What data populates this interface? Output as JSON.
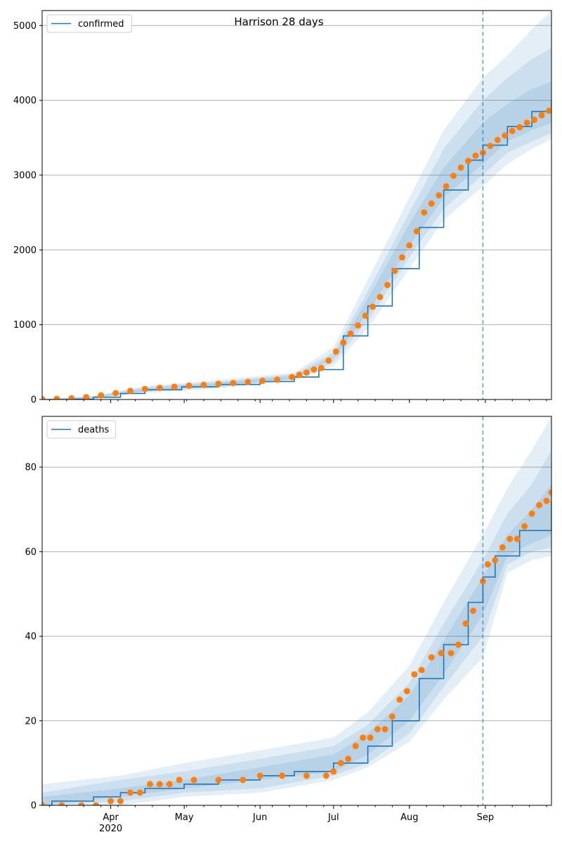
{
  "figure_title": "Harrison 28 days",
  "colors": {
    "model": "#1f77b4",
    "observed": "#ff7f0e",
    "band": "#1f77b4",
    "grid": "#b0b0b0"
  },
  "x_axis": {
    "tick_labels": [
      "Apr",
      "May",
      "Jun",
      "Jul",
      "Aug",
      "Sep"
    ],
    "year_label": "2020"
  },
  "chart_data": [
    {
      "type": "line",
      "name": "confirmed",
      "legend": "confirmed",
      "legend_position": "top-left",
      "grid": true,
      "x_range": [
        "2020-03-04",
        "2020-09-28"
      ],
      "forecast_start": "2020-08-31",
      "ylim": [
        0,
        5200
      ],
      "yticks": [
        0,
        1000,
        2000,
        3000,
        4000,
        5000
      ],
      "model": {
        "x": [
          "2020-03-04",
          "2020-03-15",
          "2020-03-25",
          "2020-04-05",
          "2020-04-15",
          "2020-04-30",
          "2020-05-15",
          "2020-06-01",
          "2020-06-15",
          "2020-06-25",
          "2020-07-05",
          "2020-07-15",
          "2020-07-25",
          "2020-08-05",
          "2020-08-15",
          "2020-08-25",
          "2020-08-31",
          "2020-09-10",
          "2020-09-20",
          "2020-09-28"
        ],
        "y": [
          0,
          5,
          30,
          80,
          130,
          170,
          200,
          240,
          300,
          400,
          850,
          1250,
          1750,
          2300,
          2800,
          3200,
          3400,
          3650,
          3850,
          4000
        ]
      },
      "bands": [
        {
          "x": [
            "2020-03-04",
            "2020-03-25",
            "2020-04-15",
            "2020-05-15",
            "2020-06-15",
            "2020-07-01",
            "2020-07-15",
            "2020-08-01",
            "2020-08-15",
            "2020-08-31",
            "2020-09-10",
            "2020-09-20",
            "2020-09-28"
          ],
          "low": [
            0,
            10,
            90,
            150,
            250,
            450,
            950,
            1750,
            2400,
            2850,
            3150,
            3350,
            3480
          ],
          "high": [
            0,
            50,
            180,
            260,
            360,
            700,
            1600,
            2700,
            3600,
            4300,
            4600,
            4950,
            5200
          ]
        },
        {
          "x": [
            "2020-03-04",
            "2020-03-25",
            "2020-04-15",
            "2020-05-15",
            "2020-06-15",
            "2020-07-01",
            "2020-07-15",
            "2020-08-01",
            "2020-08-15",
            "2020-08-31",
            "2020-09-10",
            "2020-09-20",
            "2020-09-28"
          ],
          "low": [
            0,
            15,
            100,
            165,
            265,
            500,
            1050,
            1900,
            2550,
            3000,
            3300,
            3450,
            3560
          ],
          "high": [
            0,
            45,
            165,
            240,
            340,
            630,
            1450,
            2500,
            3350,
            4000,
            4300,
            4550,
            4700
          ]
        },
        {
          "x": [
            "2020-03-04",
            "2020-03-25",
            "2020-04-15",
            "2020-05-15",
            "2020-06-15",
            "2020-07-01",
            "2020-07-15",
            "2020-08-01",
            "2020-08-15",
            "2020-08-31",
            "2020-09-10",
            "2020-09-20",
            "2020-09-28"
          ],
          "low": [
            0,
            20,
            110,
            178,
            280,
            560,
            1150,
            2050,
            2700,
            3150,
            3450,
            3600,
            3700
          ],
          "high": [
            0,
            38,
            150,
            222,
            320,
            580,
            1350,
            2350,
            3100,
            3700,
            3950,
            4150,
            4250
          ]
        }
      ],
      "observed": {
        "x": [
          "2020-03-04",
          "2020-03-10",
          "2020-03-16",
          "2020-03-22",
          "2020-03-28",
          "2020-04-03",
          "2020-04-09",
          "2020-04-15",
          "2020-04-21",
          "2020-04-27",
          "2020-05-03",
          "2020-05-09",
          "2020-05-15",
          "2020-05-21",
          "2020-05-27",
          "2020-06-02",
          "2020-06-08",
          "2020-06-14",
          "2020-06-17",
          "2020-06-20",
          "2020-06-23",
          "2020-06-26",
          "2020-06-29",
          "2020-07-02",
          "2020-07-05",
          "2020-07-08",
          "2020-07-11",
          "2020-07-14",
          "2020-07-17",
          "2020-07-20",
          "2020-07-23",
          "2020-07-26",
          "2020-07-29",
          "2020-08-01",
          "2020-08-04",
          "2020-08-07",
          "2020-08-10",
          "2020-08-13",
          "2020-08-16",
          "2020-08-19",
          "2020-08-22",
          "2020-08-25",
          "2020-08-28",
          "2020-08-31",
          "2020-09-03",
          "2020-09-06",
          "2020-09-09",
          "2020-09-12",
          "2020-09-15",
          "2020-09-18",
          "2020-09-21",
          "2020-09-24",
          "2020-09-27"
        ],
        "y": [
          5,
          8,
          15,
          30,
          55,
          85,
          115,
          140,
          155,
          170,
          185,
          195,
          210,
          220,
          235,
          250,
          265,
          300,
          330,
          360,
          400,
          420,
          520,
          640,
          760,
          880,
          990,
          1120,
          1240,
          1370,
          1530,
          1720,
          1900,
          2060,
          2250,
          2500,
          2620,
          2730,
          2850,
          2990,
          3100,
          3190,
          3260,
          3300,
          3390,
          3470,
          3530,
          3590,
          3640,
          3700,
          3740,
          3800,
          3860
        ]
      }
    },
    {
      "type": "line",
      "name": "deaths",
      "legend": "deaths",
      "legend_position": "top-left",
      "grid": true,
      "x_range": [
        "2020-03-04",
        "2020-09-28"
      ],
      "forecast_start": "2020-08-31",
      "ylim": [
        0,
        92
      ],
      "yticks": [
        0,
        20,
        40,
        60,
        80
      ],
      "model": {
        "x": [
          "2020-03-04",
          "2020-03-08",
          "2020-03-25",
          "2020-04-05",
          "2020-04-15",
          "2020-05-01",
          "2020-05-15",
          "2020-06-01",
          "2020-06-15",
          "2020-07-01",
          "2020-07-15",
          "2020-07-25",
          "2020-08-05",
          "2020-08-15",
          "2020-08-25",
          "2020-08-31",
          "2020-09-05",
          "2020-09-15",
          "2020-09-28"
        ],
        "y": [
          0,
          1,
          2,
          3,
          4,
          5,
          6,
          7,
          8,
          10,
          14,
          20,
          30,
          38,
          48,
          54,
          59,
          65,
          72
        ]
      },
      "bands": [
        {
          "x": [
            "2020-03-04",
            "2020-04-05",
            "2020-05-01",
            "2020-06-01",
            "2020-07-01",
            "2020-07-15",
            "2020-08-01",
            "2020-08-15",
            "2020-08-31",
            "2020-09-10",
            "2020-09-20",
            "2020-09-28"
          ],
          "low": [
            0,
            0,
            2,
            3,
            6,
            9,
            15,
            25,
            35,
            55,
            58,
            59
          ],
          "high": [
            5,
            7,
            10,
            13,
            16,
            22,
            33,
            48,
            64,
            75,
            84,
            92
          ]
        },
        {
          "x": [
            "2020-03-04",
            "2020-04-05",
            "2020-05-01",
            "2020-06-01",
            "2020-07-01",
            "2020-07-15",
            "2020-08-01",
            "2020-08-15",
            "2020-08-31",
            "2020-09-10",
            "2020-09-20",
            "2020-09-28"
          ],
          "low": [
            0,
            1,
            3,
            4,
            7,
            10,
            17,
            28,
            40,
            57,
            60,
            61
          ],
          "high": [
            3,
            6,
            8,
            11,
            14,
            19,
            29,
            43,
            58,
            69,
            76,
            84
          ]
        },
        {
          "x": [
            "2020-03-04",
            "2020-04-05",
            "2020-05-01",
            "2020-06-01",
            "2020-07-01",
            "2020-07-15",
            "2020-08-01",
            "2020-08-15",
            "2020-08-31",
            "2020-09-10",
            "2020-09-20",
            "2020-09-28"
          ],
          "low": [
            0,
            2,
            4,
            6,
            8,
            12,
            20,
            31,
            45,
            59,
            62,
            64
          ],
          "high": [
            2,
            4,
            6,
            9,
            12,
            17,
            26,
            39,
            54,
            64,
            70,
            76
          ]
        }
      ],
      "observed": {
        "x": [
          "2020-03-04",
          "2020-03-12",
          "2020-03-20",
          "2020-03-26",
          "2020-04-01",
          "2020-04-05",
          "2020-04-09",
          "2020-04-13",
          "2020-04-17",
          "2020-04-21",
          "2020-04-25",
          "2020-04-29",
          "2020-05-05",
          "2020-05-15",
          "2020-05-25",
          "2020-06-01",
          "2020-06-10",
          "2020-06-20",
          "2020-06-28",
          "2020-07-01",
          "2020-07-04",
          "2020-07-07",
          "2020-07-10",
          "2020-07-13",
          "2020-07-16",
          "2020-07-19",
          "2020-07-22",
          "2020-07-25",
          "2020-07-28",
          "2020-07-31",
          "2020-08-03",
          "2020-08-06",
          "2020-08-10",
          "2020-08-14",
          "2020-08-18",
          "2020-08-21",
          "2020-08-24",
          "2020-08-27",
          "2020-08-31",
          "2020-09-02",
          "2020-09-05",
          "2020-09-08",
          "2020-09-11",
          "2020-09-14",
          "2020-09-17",
          "2020-09-20",
          "2020-09-23",
          "2020-09-26",
          "2020-09-28"
        ],
        "y": [
          0,
          0,
          0,
          0,
          1,
          1,
          3,
          3,
          5,
          5,
          5,
          6,
          6,
          6,
          6,
          7,
          7,
          7,
          7,
          8,
          10,
          11,
          14,
          16,
          16,
          18,
          18,
          21,
          25,
          27,
          31,
          32,
          35,
          36,
          36,
          38,
          43,
          46,
          53,
          57,
          58,
          61,
          63,
          63,
          66,
          69,
          71,
          72,
          74
        ]
      }
    }
  ]
}
